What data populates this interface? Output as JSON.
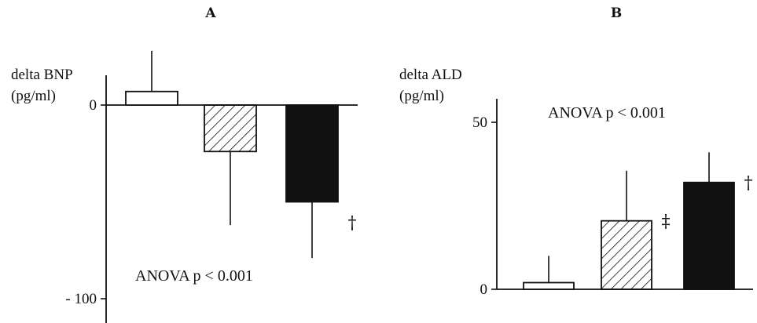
{
  "chart_data": [
    {
      "type": "bar",
      "panel_label": "A",
      "ylabel_line1": "delta BNP",
      "ylabel_line2": "(pg/ml)",
      "ylim": [
        -100,
        27
      ],
      "yticks": [
        {
          "value": 0,
          "label": "0"
        },
        {
          "value": -100,
          "label": "- 100"
        }
      ],
      "annotation": "ANOVA p < 0.001",
      "bars": [
        {
          "value": 7,
          "error": 21,
          "fill": "white",
          "marker": ""
        },
        {
          "value": -24,
          "error": 38,
          "fill": "hatched",
          "marker": ""
        },
        {
          "value": -50,
          "error": 29,
          "fill": "black",
          "marker": "†"
        }
      ]
    },
    {
      "type": "bar",
      "panel_label": "B",
      "ylabel_line1": "delta ALD",
      "ylabel_line2": "(pg/ml)",
      "ylim": [
        0,
        57
      ],
      "yticks": [
        {
          "value": 0,
          "label": "0"
        },
        {
          "value": 50,
          "label": "50"
        }
      ],
      "annotation": "ANOVA p < 0.001",
      "bars": [
        {
          "value": 2,
          "error": 8,
          "fill": "white",
          "marker": ""
        },
        {
          "value": 20.5,
          "error": 15,
          "fill": "hatched",
          "marker": "‡"
        },
        {
          "value": 32,
          "error": 9,
          "fill": "black",
          "marker": "†"
        }
      ]
    }
  ],
  "colors": {
    "ink": "#111111",
    "background": "#ffffff"
  }
}
